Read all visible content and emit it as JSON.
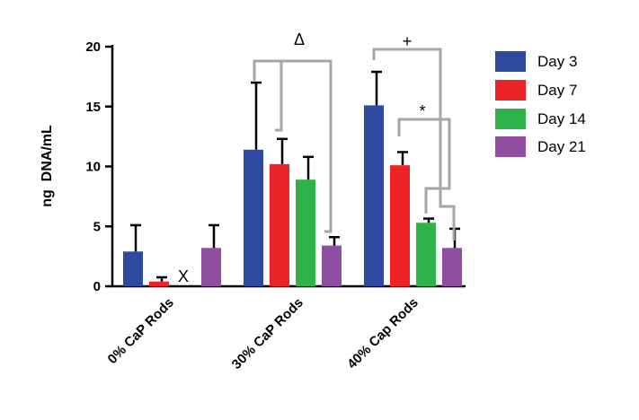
{
  "chart_data": {
    "type": "bar",
    "ylabel": "ng  DNA/mL",
    "xlabel": "",
    "ylim": [
      0,
      20
    ],
    "yticks": [
      0,
      5,
      10,
      15,
      20
    ],
    "grid": false,
    "legend_position": "right",
    "categories": [
      "0% CaP Rods",
      "30% CaP Rods",
      "40% Cap Rods"
    ],
    "series": [
      {
        "name": "Day 3",
        "color": "#2e4aa0",
        "values": [
          2.9,
          11.4,
          15.1
        ],
        "errors": [
          2.2,
          5.6,
          2.8
        ]
      },
      {
        "name": "Day 7",
        "color": "#ee2328",
        "values": [
          0.4,
          10.2,
          10.1
        ],
        "errors": [
          0.35,
          2.1,
          1.1
        ]
      },
      {
        "name": "Day 14",
        "color": "#2db34a",
        "values": [
          null,
          8.9,
          5.3
        ],
        "errors": [
          null,
          1.9,
          0.35
        ]
      },
      {
        "name": "Day 21",
        "color": "#8e4fa0",
        "values": [
          3.2,
          3.4,
          3.2
        ],
        "errors": [
          1.9,
          0.7,
          1.6
        ]
      }
    ],
    "annotations": {
      "missing_marker": "X",
      "delta": "Δ",
      "plus": "+",
      "star": "*"
    }
  }
}
